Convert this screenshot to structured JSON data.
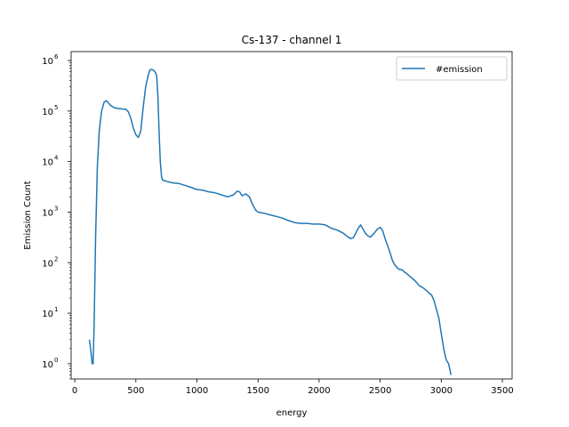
{
  "chart_data": {
    "type": "line",
    "title": "Cs-137 - channel 1",
    "xlabel": "energy",
    "ylabel": "Emission Count",
    "xlim": [
      -30,
      3580
    ],
    "ylim": [
      0.5,
      1500000
    ],
    "yscale": "log",
    "grid": false,
    "legend": {
      "placement": "top-right"
    },
    "x_ticks": [
      0,
      500,
      1000,
      1500,
      2000,
      2500,
      3000,
      3500
    ],
    "x_tick_labels": [
      "0",
      "500",
      "1000",
      "1500",
      "2000",
      "2500",
      "3000",
      "3500"
    ],
    "y_ticks": [
      1,
      10,
      100,
      1000,
      10000,
      100000,
      1000000
    ],
    "y_tick_labels": [
      "10",
      "10",
      "10",
      "10",
      "10",
      "10",
      "10"
    ],
    "y_tick_exponents": [
      "0",
      "1",
      "2",
      "3",
      "4",
      "5",
      "6"
    ],
    "series": [
      {
        "name": "#emission",
        "color": "#1f77b4",
        "points": [
          [
            120,
            3
          ],
          [
            135,
            1.5
          ],
          [
            142,
            1
          ],
          [
            150,
            1
          ],
          [
            158,
            5
          ],
          [
            170,
            300
          ],
          [
            185,
            8000
          ],
          [
            200,
            40000
          ],
          [
            220,
            100000
          ],
          [
            240,
            150000
          ],
          [
            260,
            160000
          ],
          [
            280,
            140000
          ],
          [
            300,
            125000
          ],
          [
            330,
            115000
          ],
          [
            360,
            112000
          ],
          [
            390,
            110000
          ],
          [
            420,
            108000
          ],
          [
            440,
            95000
          ],
          [
            460,
            70000
          ],
          [
            480,
            45000
          ],
          [
            500,
            34000
          ],
          [
            520,
            30000
          ],
          [
            540,
            40000
          ],
          [
            560,
            120000
          ],
          [
            580,
            300000
          ],
          [
            600,
            500000
          ],
          [
            615,
            650000
          ],
          [
            630,
            670000
          ],
          [
            645,
            640000
          ],
          [
            660,
            580000
          ],
          [
            670,
            500000
          ],
          [
            680,
            200000
          ],
          [
            690,
            40000
          ],
          [
            700,
            10000
          ],
          [
            710,
            5000
          ],
          [
            720,
            4300
          ],
          [
            760,
            4000
          ],
          [
            800,
            3800
          ],
          [
            850,
            3700
          ],
          [
            900,
            3400
          ],
          [
            950,
            3100
          ],
          [
            1000,
            2800
          ],
          [
            1050,
            2700
          ],
          [
            1100,
            2500
          ],
          [
            1150,
            2400
          ],
          [
            1200,
            2200
          ],
          [
            1250,
            2000
          ],
          [
            1300,
            2200
          ],
          [
            1330,
            2600
          ],
          [
            1350,
            2500
          ],
          [
            1370,
            2100
          ],
          [
            1400,
            2300
          ],
          [
            1430,
            2000
          ],
          [
            1450,
            1500
          ],
          [
            1480,
            1100
          ],
          [
            1500,
            1000
          ],
          [
            1550,
            950
          ],
          [
            1600,
            880
          ],
          [
            1650,
            820
          ],
          [
            1700,
            760
          ],
          [
            1750,
            680
          ],
          [
            1800,
            620
          ],
          [
            1850,
            600
          ],
          [
            1900,
            600
          ],
          [
            1950,
            580
          ],
          [
            2000,
            580
          ],
          [
            2050,
            560
          ],
          [
            2100,
            480
          ],
          [
            2150,
            440
          ],
          [
            2200,
            380
          ],
          [
            2230,
            330
          ],
          [
            2260,
            300
          ],
          [
            2280,
            310
          ],
          [
            2300,
            380
          ],
          [
            2320,
            480
          ],
          [
            2340,
            560
          ],
          [
            2360,
            460
          ],
          [
            2380,
            380
          ],
          [
            2400,
            340
          ],
          [
            2420,
            320
          ],
          [
            2450,
            380
          ],
          [
            2480,
            470
          ],
          [
            2500,
            500
          ],
          [
            2520,
            430
          ],
          [
            2540,
            300
          ],
          [
            2560,
            220
          ],
          [
            2580,
            160
          ],
          [
            2600,
            110
          ],
          [
            2620,
            90
          ],
          [
            2650,
            75
          ],
          [
            2680,
            72
          ],
          [
            2700,
            65
          ],
          [
            2720,
            60
          ],
          [
            2750,
            52
          ],
          [
            2780,
            45
          ],
          [
            2800,
            40
          ],
          [
            2820,
            35
          ],
          [
            2850,
            32
          ],
          [
            2880,
            28
          ],
          [
            2900,
            25
          ],
          [
            2920,
            23
          ],
          [
            2940,
            18
          ],
          [
            2960,
            12
          ],
          [
            2980,
            8
          ],
          [
            3000,
            4
          ],
          [
            3020,
            2
          ],
          [
            3040,
            1.2
          ],
          [
            3060,
            1
          ],
          [
            3080,
            0.6
          ]
        ]
      }
    ]
  }
}
